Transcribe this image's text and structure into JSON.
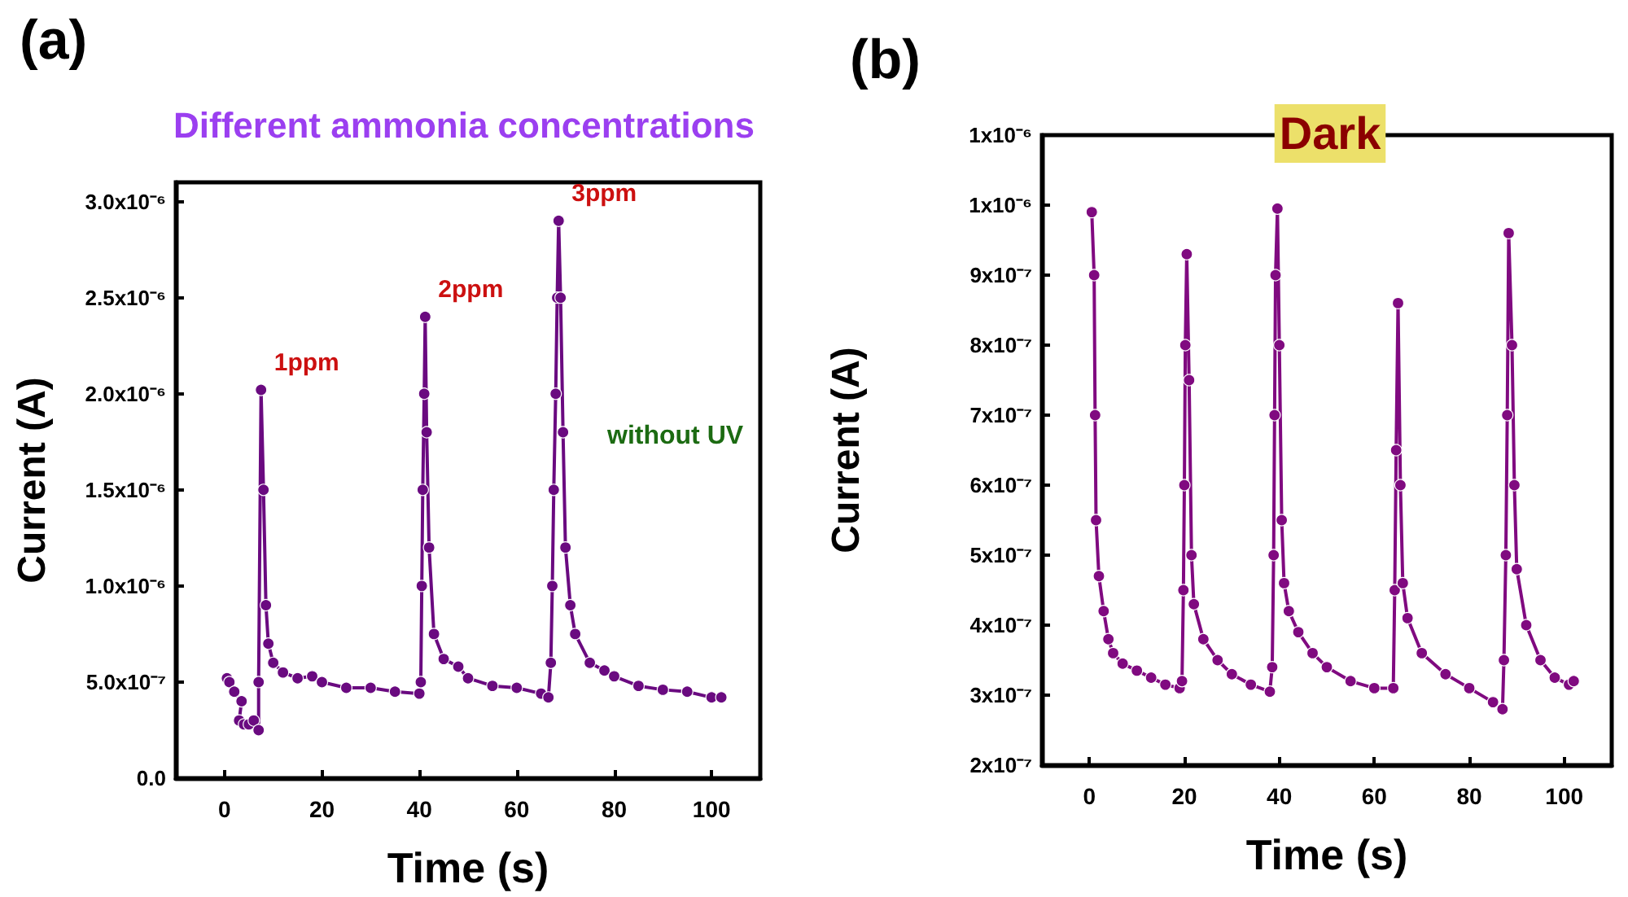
{
  "chart_data": [
    {
      "type": "line",
      "title": "Different ammonia concentrations",
      "xlabel": "Time (s)",
      "ylabel": "Current (A)",
      "marker": "circle",
      "line_style": "solid",
      "grid": false,
      "xlim": [
        -10,
        110
      ],
      "xticks": [
        0,
        20,
        40,
        60,
        80,
        100
      ],
      "ylim": [
        0,
        3.1e-06
      ],
      "yticks": [
        {
          "value": 0,
          "label": "0.0"
        },
        {
          "value": 5e-07,
          "label": "5.0x10⁻⁷"
        },
        {
          "value": 1e-06,
          "label": "1.0x10⁻⁶"
        },
        {
          "value": 1.5e-06,
          "label": "1.5x10⁻⁶"
        },
        {
          "value": 2e-06,
          "label": "2.0x10⁻⁶"
        },
        {
          "value": 2.5e-06,
          "label": "2.5x10⁻⁶"
        },
        {
          "value": 3e-06,
          "label": "3.0x10⁻⁶"
        }
      ],
      "annotations": [
        "(a)",
        "without UV",
        {
          "text": "1ppm",
          "x": 7.5,
          "y": 2.02e-06
        },
        {
          "text": "2ppm",
          "x": 41.2,
          "y": 2.4e-06
        },
        {
          "text": "3ppm",
          "x": 68.6,
          "y": 2.9e-06
        }
      ],
      "series": [
        {
          "color": "#6a0a80",
          "x": [
            0.5,
            1,
            2,
            3.5,
            3,
            4,
            5,
            6,
            7,
            7,
            7.5,
            8,
            8.5,
            9,
            10,
            12,
            15,
            18,
            20,
            25,
            30,
            35,
            40,
            40.3,
            40.5,
            40.7,
            41,
            41.2,
            41.5,
            42,
            43,
            45,
            48,
            50,
            55,
            60,
            65,
            66.5,
            67,
            67.3,
            67.6,
            68,
            68.3,
            68.6,
            69,
            69.5,
            70,
            71,
            72,
            75,
            78,
            80,
            85,
            90,
            95,
            100,
            102
          ],
          "values": [
            5.2e-07,
            5e-07,
            4.5e-07,
            4e-07,
            3e-07,
            2.8e-07,
            2.8e-07,
            3e-07,
            2.5e-07,
            5e-07,
            2.02e-06,
            1.5e-06,
            9e-07,
            7e-07,
            6e-07,
            5.5e-07,
            5.2e-07,
            5.3e-07,
            5e-07,
            4.7e-07,
            4.7e-07,
            4.5e-07,
            4.4e-07,
            5e-07,
            1e-06,
            1.5e-06,
            2e-06,
            2.4e-06,
            1.8e-06,
            1.2e-06,
            7.5e-07,
            6.2e-07,
            5.8e-07,
            5.2e-07,
            4.8e-07,
            4.7e-07,
            4.4e-07,
            4.2e-07,
            6e-07,
            1e-06,
            1.5e-06,
            2e-06,
            2.5e-06,
            2.9e-06,
            2.5e-06,
            1.8e-06,
            1.2e-06,
            9e-07,
            7.5e-07,
            6e-07,
            5.6e-07,
            5.3e-07,
            4.8e-07,
            4.6e-07,
            4.5e-07,
            4.2e-07,
            4.2e-07
          ]
        }
      ]
    },
    {
      "type": "line",
      "title": "Dark",
      "xlabel": "Time (s)",
      "ylabel": "Current (A)",
      "marker": "circle",
      "line_style": "solid",
      "grid": false,
      "xlim": [
        -10,
        110
      ],
      "xticks": [
        0,
        20,
        40,
        60,
        80,
        100
      ],
      "ylim": [
        2e-07,
        1.1e-06
      ],
      "yticks": [
        {
          "value": 2e-07,
          "label": "2x10⁻⁷"
        },
        {
          "value": 3e-07,
          "label": "3x10⁻⁷"
        },
        {
          "value": 4e-07,
          "label": "4x10⁻⁷"
        },
        {
          "value": 5e-07,
          "label": "5x10⁻⁷"
        },
        {
          "value": 6e-07,
          "label": "6x10⁻⁷"
        },
        {
          "value": 7e-07,
          "label": "7x10⁻⁷"
        },
        {
          "value": 8e-07,
          "label": "8x10⁻⁷"
        },
        {
          "value": 9e-07,
          "label": "9x10⁻⁷"
        },
        {
          "value": 1e-06,
          "label": "1x10⁻⁶"
        },
        {
          "value": 1.1e-06,
          "label": "1x10⁻⁶"
        }
      ],
      "annotations": [
        "(b)"
      ],
      "series": [
        {
          "color": "#800a80",
          "x": [
            0.5,
            1,
            1.2,
            1.4,
            2,
            3,
            4,
            5,
            7,
            10,
            13,
            16,
            19,
            19.5,
            19.8,
            20,
            20.2,
            20.5,
            21,
            21.5,
            22,
            24,
            27,
            30,
            34,
            38,
            38.5,
            38.8,
            39,
            39.2,
            39.6,
            40,
            40.5,
            41,
            42,
            44,
            47,
            50,
            55,
            60,
            64,
            64.3,
            64.6,
            65,
            65.5,
            66,
            67,
            70,
            75,
            80,
            85,
            87,
            87.3,
            87.7,
            88,
            88.3,
            89,
            89.5,
            90,
            92,
            95,
            98,
            101,
            102
          ],
          "values": [
            9.9e-07,
            9e-07,
            7e-07,
            5.5e-07,
            4.7e-07,
            4.2e-07,
            3.8e-07,
            3.6e-07,
            3.45e-07,
            3.35e-07,
            3.25e-07,
            3.15e-07,
            3.1e-07,
            3.2e-07,
            4.5e-07,
            6e-07,
            8e-07,
            9.3e-07,
            7.5e-07,
            5e-07,
            4.3e-07,
            3.8e-07,
            3.5e-07,
            3.3e-07,
            3.15e-07,
            3.05e-07,
            3.4e-07,
            5e-07,
            7e-07,
            9e-07,
            9.95e-07,
            8e-07,
            5.5e-07,
            4.6e-07,
            4.2e-07,
            3.9e-07,
            3.6e-07,
            3.4e-07,
            3.2e-07,
            3.1e-07,
            3.1e-07,
            4.5e-07,
            6.5e-07,
            8.6e-07,
            6e-07,
            4.6e-07,
            4.1e-07,
            3.6e-07,
            3.3e-07,
            3.1e-07,
            2.9e-07,
            2.8e-07,
            3.5e-07,
            5e-07,
            7e-07,
            9.6e-07,
            8e-07,
            6e-07,
            4.8e-07,
            4e-07,
            3.5e-07,
            3.25e-07,
            3.15e-07,
            3.2e-07
          ]
        }
      ]
    }
  ]
}
